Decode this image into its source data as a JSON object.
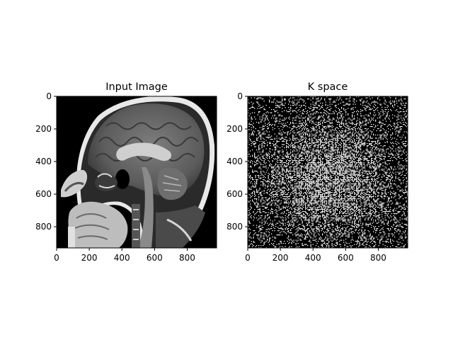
{
  "chart_data": [
    {
      "type": "image",
      "title": "Input Image",
      "content": "sagittal brain MRI (grayscale)",
      "colormap": "gray",
      "xlim": [
        0,
        980
      ],
      "ylim": [
        930,
        0
      ],
      "xticks": [
        0,
        200,
        400,
        600,
        800
      ],
      "yticks": [
        0,
        200,
        400,
        600,
        800
      ],
      "xticklabels": [
        "0",
        "200",
        "400",
        "600",
        "800"
      ],
      "yticklabels": [
        "0",
        "200",
        "400",
        "600",
        "800"
      ],
      "xlabel": "",
      "ylabel": ""
    },
    {
      "type": "image",
      "title": "K space",
      "content": "binary k-space sample pattern, density highest at center",
      "colormap": "gray",
      "xlim": [
        0,
        980
      ],
      "ylim": [
        930,
        0
      ],
      "xticks": [
        0,
        200,
        400,
        600,
        800
      ],
      "yticks": [
        0,
        200,
        400,
        600,
        800
      ],
      "xticklabels": [
        "0",
        "200",
        "400",
        "600",
        "800"
      ],
      "yticklabels": [
        "0",
        "200",
        "400",
        "600",
        "800"
      ],
      "xlabel": "",
      "ylabel": ""
    }
  ],
  "colors": {
    "background": "#ffffff",
    "image_black": "#000000",
    "image_white": "#ffffff",
    "frame": "#000000"
  }
}
